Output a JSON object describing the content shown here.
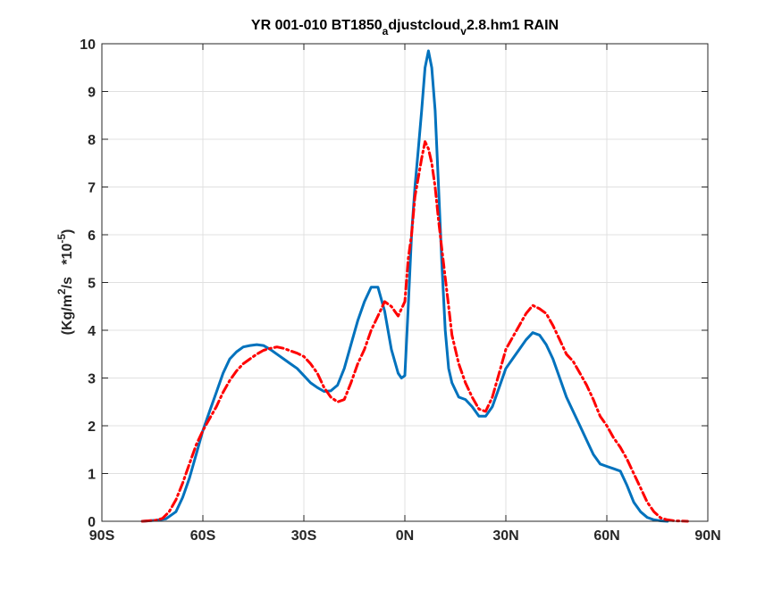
{
  "chart_data": {
    "type": "line",
    "title": {
      "prefix": "YR 001-010 BT1850",
      "sub1": "a",
      "middle": "djustcloud",
      "sub2": "v",
      "suffix": "2.8.hm1 RAIN"
    },
    "ylabel": {
      "part1": "(Kg/m",
      "sup1": "2",
      "part2": "/s   *10",
      "sup2": "-5",
      "part3": ")"
    },
    "xlabel": "",
    "xlim": [
      -90,
      90
    ],
    "ylim": [
      0,
      10
    ],
    "grid": true,
    "x_ticks": [
      {
        "value": -90,
        "label": "90S"
      },
      {
        "value": -60,
        "label": "60S"
      },
      {
        "value": -30,
        "label": "30S"
      },
      {
        "value": 0,
        "label": "0N"
      },
      {
        "value": 30,
        "label": "30N"
      },
      {
        "value": 60,
        "label": "60N"
      },
      {
        "value": 90,
        "label": "90N"
      }
    ],
    "y_ticks": [
      0,
      1,
      2,
      3,
      4,
      5,
      6,
      7,
      8,
      9,
      10
    ],
    "series": [
      {
        "color": "#0072BD",
        "line_style": "solid",
        "points": [
          [
            -78,
            0.0
          ],
          [
            -74,
            0.02
          ],
          [
            -71,
            0.05
          ],
          [
            -68,
            0.2
          ],
          [
            -66,
            0.5
          ],
          [
            -64,
            0.9
          ],
          [
            -62,
            1.4
          ],
          [
            -60,
            1.9
          ],
          [
            -58,
            2.3
          ],
          [
            -56,
            2.7
          ],
          [
            -54,
            3.1
          ],
          [
            -52,
            3.4
          ],
          [
            -50,
            3.55
          ],
          [
            -48,
            3.65
          ],
          [
            -46,
            3.68
          ],
          [
            -44,
            3.7
          ],
          [
            -42,
            3.68
          ],
          [
            -40,
            3.6
          ],
          [
            -38,
            3.5
          ],
          [
            -36,
            3.4
          ],
          [
            -34,
            3.3
          ],
          [
            -32,
            3.2
          ],
          [
            -30,
            3.05
          ],
          [
            -28,
            2.9
          ],
          [
            -26,
            2.8
          ],
          [
            -24,
            2.72
          ],
          [
            -22,
            2.73
          ],
          [
            -20,
            2.85
          ],
          [
            -18,
            3.2
          ],
          [
            -16,
            3.7
          ],
          [
            -14,
            4.2
          ],
          [
            -12,
            4.6
          ],
          [
            -10,
            4.9
          ],
          [
            -8,
            4.9
          ],
          [
            -6,
            4.4
          ],
          [
            -4,
            3.6
          ],
          [
            -2,
            3.1
          ],
          [
            -1,
            3.0
          ],
          [
            0,
            3.05
          ],
          [
            1,
            4.5
          ],
          [
            2,
            6.0
          ],
          [
            3,
            7.0
          ],
          [
            4,
            7.8
          ],
          [
            5,
            8.6
          ],
          [
            6,
            9.5
          ],
          [
            7,
            9.85
          ],
          [
            8,
            9.5
          ],
          [
            9,
            8.6
          ],
          [
            10,
            7.0
          ],
          [
            11,
            5.4
          ],
          [
            12,
            4.0
          ],
          [
            13,
            3.2
          ],
          [
            14,
            2.9
          ],
          [
            16,
            2.6
          ],
          [
            18,
            2.55
          ],
          [
            20,
            2.4
          ],
          [
            22,
            2.2
          ],
          [
            24,
            2.2
          ],
          [
            26,
            2.4
          ],
          [
            28,
            2.8
          ],
          [
            30,
            3.2
          ],
          [
            32,
            3.4
          ],
          [
            34,
            3.6
          ],
          [
            36,
            3.8
          ],
          [
            38,
            3.95
          ],
          [
            40,
            3.9
          ],
          [
            42,
            3.7
          ],
          [
            44,
            3.4
          ],
          [
            46,
            3.0
          ],
          [
            48,
            2.6
          ],
          [
            50,
            2.3
          ],
          [
            52,
            2.0
          ],
          [
            54,
            1.7
          ],
          [
            56,
            1.4
          ],
          [
            58,
            1.2
          ],
          [
            60,
            1.15
          ],
          [
            62,
            1.1
          ],
          [
            64,
            1.05
          ],
          [
            66,
            0.75
          ],
          [
            68,
            0.4
          ],
          [
            70,
            0.2
          ],
          [
            72,
            0.08
          ],
          [
            74,
            0.03
          ],
          [
            76,
            0.01
          ],
          [
            78,
            0.0
          ]
        ]
      },
      {
        "color": "#FF0000",
        "line_style": "dashdot",
        "points": [
          [
            -78,
            0.0
          ],
          [
            -74,
            0.02
          ],
          [
            -72,
            0.06
          ],
          [
            -70,
            0.2
          ],
          [
            -68,
            0.45
          ],
          [
            -66,
            0.8
          ],
          [
            -64,
            1.2
          ],
          [
            -62,
            1.6
          ],
          [
            -60,
            1.9
          ],
          [
            -58,
            2.15
          ],
          [
            -56,
            2.4
          ],
          [
            -54,
            2.7
          ],
          [
            -52,
            2.95
          ],
          [
            -50,
            3.15
          ],
          [
            -48,
            3.3
          ],
          [
            -46,
            3.4
          ],
          [
            -44,
            3.5
          ],
          [
            -42,
            3.58
          ],
          [
            -40,
            3.62
          ],
          [
            -38,
            3.65
          ],
          [
            -36,
            3.62
          ],
          [
            -34,
            3.57
          ],
          [
            -32,
            3.52
          ],
          [
            -30,
            3.45
          ],
          [
            -28,
            3.3
          ],
          [
            -26,
            3.1
          ],
          [
            -24,
            2.8
          ],
          [
            -22,
            2.6
          ],
          [
            -20,
            2.5
          ],
          [
            -18,
            2.55
          ],
          [
            -16,
            2.9
          ],
          [
            -14,
            3.3
          ],
          [
            -12,
            3.6
          ],
          [
            -10,
            4.0
          ],
          [
            -8,
            4.3
          ],
          [
            -6,
            4.6
          ],
          [
            -4,
            4.5
          ],
          [
            -2,
            4.3
          ],
          [
            0,
            4.6
          ],
          [
            1,
            5.5
          ],
          [
            2,
            6.0
          ],
          [
            3,
            6.8
          ],
          [
            4,
            7.2
          ],
          [
            5,
            7.6
          ],
          [
            6,
            7.95
          ],
          [
            7,
            7.8
          ],
          [
            8,
            7.5
          ],
          [
            9,
            7.0
          ],
          [
            10,
            6.3
          ],
          [
            11,
            5.7
          ],
          [
            12,
            5.1
          ],
          [
            13,
            4.5
          ],
          [
            14,
            3.9
          ],
          [
            16,
            3.3
          ],
          [
            18,
            2.9
          ],
          [
            20,
            2.6
          ],
          [
            22,
            2.35
          ],
          [
            24,
            2.3
          ],
          [
            26,
            2.6
          ],
          [
            28,
            3.1
          ],
          [
            30,
            3.6
          ],
          [
            32,
            3.85
          ],
          [
            34,
            4.1
          ],
          [
            36,
            4.35
          ],
          [
            38,
            4.52
          ],
          [
            40,
            4.45
          ],
          [
            42,
            4.35
          ],
          [
            44,
            4.1
          ],
          [
            46,
            3.8
          ],
          [
            48,
            3.5
          ],
          [
            50,
            3.35
          ],
          [
            52,
            3.1
          ],
          [
            54,
            2.85
          ],
          [
            56,
            2.55
          ],
          [
            58,
            2.2
          ],
          [
            60,
            2.0
          ],
          [
            62,
            1.75
          ],
          [
            64,
            1.55
          ],
          [
            66,
            1.3
          ],
          [
            68,
            1.0
          ],
          [
            70,
            0.7
          ],
          [
            72,
            0.4
          ],
          [
            74,
            0.2
          ],
          [
            76,
            0.07
          ],
          [
            78,
            0.03
          ],
          [
            80,
            0.01
          ],
          [
            84,
            0.0
          ]
        ]
      }
    ]
  }
}
